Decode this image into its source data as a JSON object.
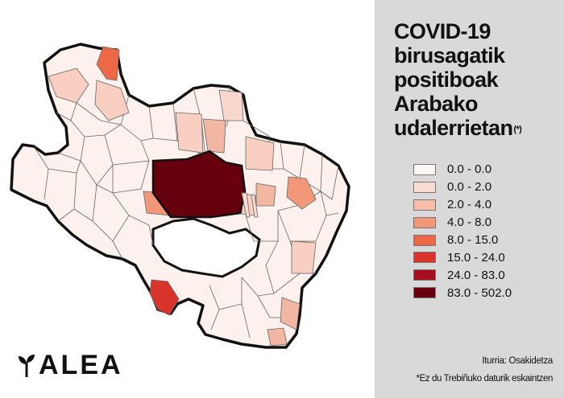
{
  "title": {
    "lines": [
      "COVID-19",
      "birusagatik",
      "positiboak",
      "Arabako",
      "udalerrietan"
    ],
    "marker": "(*)"
  },
  "legend": [
    {
      "label": "0.0 - 0.0",
      "color": "#fdf5f3"
    },
    {
      "label": "0.0 - 2.0",
      "color": "#fbdcd2"
    },
    {
      "label": "2.0 - 4.0",
      "color": "#f7bda9"
    },
    {
      "label": "4.0 - 8.0",
      "color": "#f29878"
    },
    {
      "label": "8.0 - 15.0",
      "color": "#ec6847"
    },
    {
      "label": "15.0 - 24.0",
      "color": "#d9332a"
    },
    {
      "label": "24.0 - 83.0",
      "color": "#a50f1c"
    },
    {
      "label": "83.0 - 502.0",
      "color": "#67000d"
    }
  ],
  "source": "Iturria: Osakidetza",
  "footnote": "*Ez du Trebiñuko daturik eskaintzen",
  "logo": {
    "text": "ALEA",
    "icon": "sprout-icon"
  }
}
